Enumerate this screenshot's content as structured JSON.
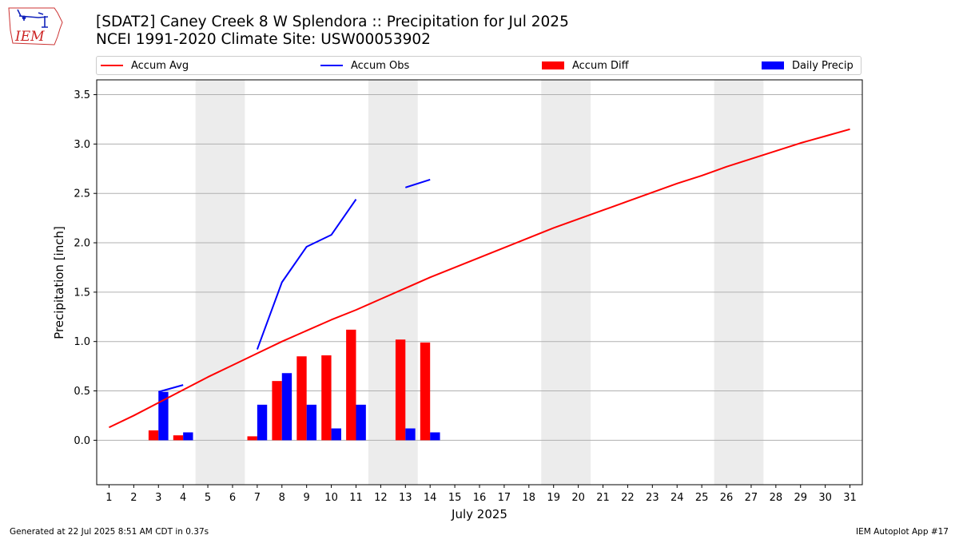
{
  "header": {
    "title_line1": "[SDAT2] Caney Creek 8 W Splendora :: Precipitation for Jul 2025",
    "title_line2": "NCEI 1991-2020 Climate Site: USW00053902",
    "logo_text": "IEM"
  },
  "legend": {
    "accum_avg": "Accum Avg",
    "accum_obs": "Accum Obs",
    "accum_diff": "Accum Diff",
    "daily_precip": "Daily Precip"
  },
  "footer": {
    "generated": "Generated at 22 Jul 2025 8:51 AM CDT in 0.37s",
    "app": "IEM Autoplot App #17"
  },
  "colors": {
    "accum_avg": "#ff0000",
    "accum_obs": "#0000ff",
    "accum_diff": "#ff0000",
    "daily_precip": "#0000ff",
    "weekend_shade": "#ececec",
    "grid": "#b0b0b0"
  },
  "chart_data": {
    "type": "bar",
    "xlabel": "July 2025",
    "ylabel": "Precipitation [inch]",
    "xlim": [
      0.5,
      31.5
    ],
    "ylim": [
      -0.45,
      3.65
    ],
    "yticks": [
      0.0,
      0.5,
      1.0,
      1.5,
      2.0,
      2.5,
      3.0,
      3.5
    ],
    "ytick_labels": [
      "0.0",
      "0.5",
      "1.0",
      "1.5",
      "2.0",
      "2.5",
      "3.0",
      "3.5"
    ],
    "days": [
      1,
      2,
      3,
      4,
      5,
      6,
      7,
      8,
      9,
      10,
      11,
      12,
      13,
      14,
      15,
      16,
      17,
      18,
      19,
      20,
      21,
      22,
      23,
      24,
      25,
      26,
      27,
      28,
      29,
      30,
      31
    ],
    "grid": "horizontal",
    "legend_position": "top",
    "weekend_shading": [
      [
        5,
        6
      ],
      [
        12,
        13
      ],
      [
        19,
        20
      ],
      [
        26,
        27
      ]
    ],
    "series": [
      {
        "name": "Accum Avg",
        "type": "line",
        "values": [
          0.13,
          0.25,
          0.38,
          0.51,
          0.64,
          0.76,
          0.88,
          1.0,
          1.11,
          1.22,
          1.32,
          1.43,
          1.54,
          1.65,
          1.75,
          1.85,
          1.95,
          2.05,
          2.15,
          2.24,
          2.33,
          2.42,
          2.51,
          2.6,
          2.68,
          2.77,
          2.85,
          2.93,
          3.01,
          3.08,
          3.15
        ]
      },
      {
        "name": "Accum Obs",
        "type": "line",
        "values": [
          null,
          null,
          0.49,
          0.56,
          null,
          null,
          0.92,
          1.6,
          1.96,
          2.08,
          2.44,
          null,
          2.56,
          2.64,
          null,
          null,
          null,
          null,
          null,
          null,
          null,
          null,
          null,
          null,
          null,
          null,
          null,
          null,
          null,
          null,
          null
        ]
      },
      {
        "name": "Accum Diff",
        "type": "bar",
        "values": [
          null,
          null,
          0.1,
          0.05,
          null,
          null,
          0.04,
          0.6,
          0.85,
          0.86,
          1.12,
          null,
          1.02,
          0.99,
          null,
          null,
          null,
          null,
          null,
          null,
          null,
          null,
          null,
          null,
          null,
          null,
          null,
          null,
          null,
          null,
          null
        ]
      },
      {
        "name": "Daily Precip",
        "type": "bar",
        "values": [
          null,
          null,
          0.49,
          0.08,
          null,
          null,
          0.36,
          0.68,
          0.36,
          0.12,
          0.36,
          null,
          0.12,
          0.08,
          null,
          null,
          null,
          null,
          null,
          null,
          null,
          null,
          null,
          null,
          null,
          null,
          null,
          null,
          null,
          null,
          null
        ]
      }
    ]
  }
}
